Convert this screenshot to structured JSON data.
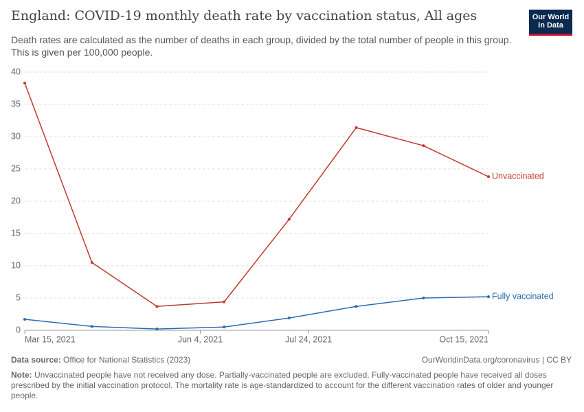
{
  "logo": [
    "Our World",
    "in Data"
  ],
  "chart_data": {
    "type": "line",
    "title": "England: COVID-19 monthly death rate by vaccination status, All ages",
    "subtitle": "Death rates are calculated as the number of deaths in each group, divided by the total number of people in this group. This is given per 100,000 people.",
    "x": [
      "2021-03-15",
      "2021-04-15",
      "2021-05-15",
      "2021-06-15",
      "2021-07-15",
      "2021-08-15",
      "2021-09-15",
      "2021-10-15"
    ],
    "series": [
      {
        "name": "Unvaccinated",
        "color": "#c0392b",
        "values": [
          38.3,
          10.5,
          3.7,
          4.4,
          17.2,
          31.4,
          28.6,
          23.8
        ]
      },
      {
        "name": "Fully vaccinated",
        "color": "#2a6ab2",
        "values": [
          1.7,
          0.6,
          0.2,
          0.5,
          1.9,
          3.7,
          5.0,
          5.2
        ]
      }
    ],
    "xlim": [
      "2021-03-15",
      "2021-10-15"
    ],
    "xticks": [
      {
        "value": "2021-03-15",
        "label": "Mar 15, 2021"
      },
      {
        "value": "2021-06-04",
        "label": "Jun 4, 2021"
      },
      {
        "value": "2021-07-24",
        "label": "Jul 24, 2021"
      },
      {
        "value": "2021-10-15",
        "label": "Oct 15, 2021"
      }
    ],
    "ylim": [
      0,
      40
    ],
    "yticks": [
      0,
      5,
      10,
      15,
      20,
      25,
      30,
      35,
      40
    ],
    "grid": true,
    "source_label": "Data source:",
    "source": "Office for National Statistics (2023)",
    "url": "OurWorldinData.org/coronavirus | CC BY",
    "note_label": "Note:",
    "note": "Unvaccinated people have not received any dose. Partially-vaccinated people are excluded. Fully-vaccinated people have received all doses prescribed by the initial vaccination protocol. The mortality rate is age-standardized to account for the different vaccination rates of older and younger people."
  }
}
